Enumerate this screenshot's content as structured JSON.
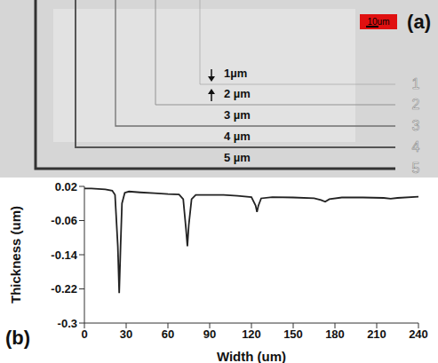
{
  "panel_a": {
    "label": "(a)",
    "scale_bar": "10um",
    "line_labels": [
      "1µm",
      "2 µm",
      "3 µm",
      "4 µm",
      "5 µm"
    ],
    "side_numbers": [
      "1",
      "2",
      "3",
      "4",
      "5"
    ]
  },
  "chart_data": {
    "type": "line",
    "panel_label": "(b)",
    "x_label": "Width (um)",
    "y_label": "Thickness (um)",
    "x": [
      0,
      5,
      10,
      15,
      20,
      22,
      24,
      25,
      26,
      27,
      29,
      32,
      40,
      50,
      60,
      68,
      71,
      73,
      74,
      75,
      77,
      80,
      90,
      100,
      110,
      120,
      123,
      124,
      125,
      127,
      135,
      150,
      165,
      170,
      173,
      176,
      185,
      200,
      215,
      220,
      225,
      240
    ],
    "values": [
      0.015,
      0.015,
      0.014,
      0.013,
      0.01,
      0.0,
      -0.12,
      -0.23,
      -0.12,
      -0.02,
      0.005,
      0.008,
      0.006,
      0.004,
      0.002,
      0.001,
      -0.01,
      -0.08,
      -0.12,
      -0.07,
      -0.01,
      0.0,
      0.0,
      0.0,
      -0.002,
      -0.005,
      -0.025,
      -0.04,
      -0.025,
      -0.008,
      -0.005,
      -0.006,
      -0.008,
      -0.012,
      -0.016,
      -0.01,
      -0.006,
      -0.006,
      -0.007,
      -0.009,
      -0.007,
      -0.004
    ],
    "color": "#222222",
    "xlim": [
      0,
      240
    ],
    "xticks": [
      0,
      30,
      60,
      90,
      120,
      150,
      180,
      210,
      240
    ],
    "ylim": [
      -0.3,
      0.02
    ],
    "yticks": [
      -0.3,
      -0.22,
      -0.14,
      -0.06,
      0.02
    ],
    "grid": false
  }
}
